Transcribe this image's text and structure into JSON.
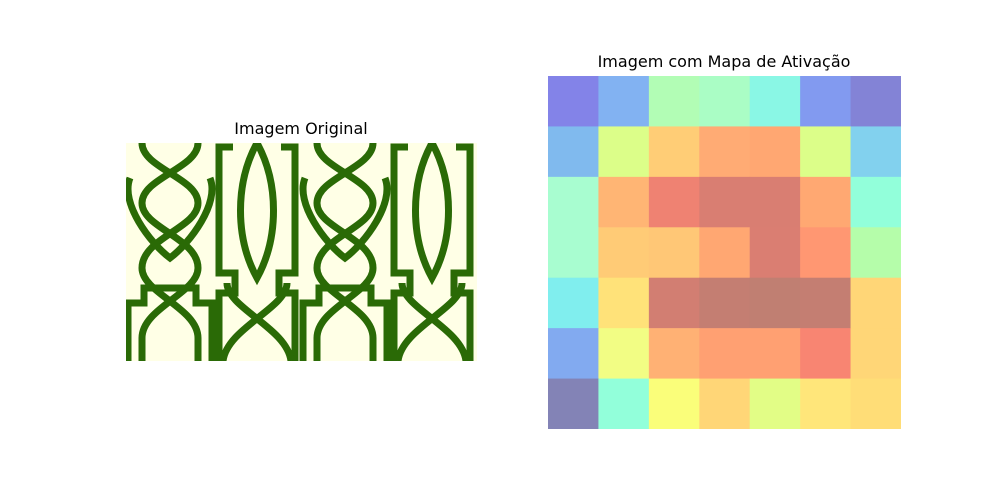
{
  "chart_data": [
    {
      "type": "image",
      "title": "Imagem Original",
      "pattern_colors": {
        "background": "#FFFFE6",
        "line": "#2A6A06"
      }
    },
    {
      "type": "heatmap",
      "title": "Imagem com Mapa de Ativação",
      "grid_size": [
        7,
        7
      ],
      "cells": [
        [
          "#8383E8",
          "#82B2F2",
          "#B2FDB5",
          "#AAFDC5",
          "#8AF7E5",
          "#829AF0",
          "#8383D6"
        ],
        [
          "#80BAEE",
          "#DCFE89",
          "#FFCD76",
          "#FFAB74",
          "#FFA772",
          "#DCFE89",
          "#82D1EE"
        ],
        [
          "#A8FDD0",
          "#FFB574",
          "#EF8272",
          "#D97E72",
          "#D97E72",
          "#FFA872",
          "#92FFDA"
        ],
        [
          "#A8FDD0",
          "#FFCB76",
          "#FFC776",
          "#FFA772",
          "#DA7E72",
          "#FF9772",
          "#B5FDAA"
        ],
        [
          "#80EEEE",
          "#FFE279",
          "#D27E72",
          "#C47E72",
          "#C07F72",
          "#C47E72",
          "#FFD677"
        ],
        [
          "#82AAF0",
          "#F2FD84",
          "#FFB174",
          "#FFA072",
          "#FFA072",
          "#F88572",
          "#FFD677"
        ],
        [
          "#8383B6",
          "#92FFDA",
          "#FAFE7A",
          "#FFD677",
          "#E2FD86",
          "#FFE67A",
          "#FFDD77"
        ]
      ]
    }
  ]
}
